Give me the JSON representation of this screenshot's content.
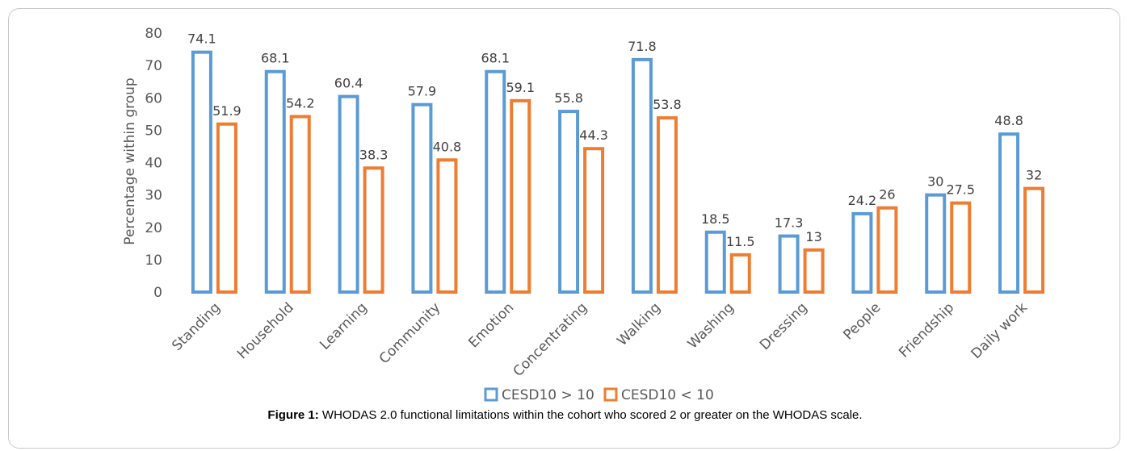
{
  "chart_data": {
    "type": "bar",
    "ylabel": "Percentage within group",
    "ylim": [
      0,
      80
    ],
    "yticks": [
      0,
      10,
      20,
      30,
      40,
      50,
      60,
      70,
      80
    ],
    "grid": false,
    "legend_position": "bottom",
    "categories": [
      "Standing",
      "Household",
      "Learning",
      "Community",
      "Emotion",
      "Concentrating",
      "Walking",
      "Washing",
      "Dressing",
      "People",
      "Friendship",
      "Daily work"
    ],
    "series": [
      {
        "name": "CESD10 > 10",
        "color": "#5b9bd5",
        "values": [
          74.1,
          68.1,
          60.4,
          57.9,
          68.1,
          55.8,
          71.8,
          18.5,
          17.3,
          24.2,
          30,
          48.8
        ],
        "labels": [
          "74.1",
          "68.1",
          "60.4",
          "57.9",
          "68.1",
          "55.8",
          "71.8",
          "18.5",
          "17.3",
          "24.2",
          "30",
          "48.8"
        ]
      },
      {
        "name": "CESD10 < 10",
        "color": "#ed7d31",
        "values": [
          51.9,
          54.2,
          38.3,
          40.8,
          59.1,
          44.3,
          53.8,
          11.5,
          13,
          26,
          27.5,
          32
        ],
        "labels": [
          "51.9",
          "54.2",
          "38.3",
          "40.8",
          "59.1",
          "44.3",
          "53.8",
          "11.5",
          "13",
          "26",
          "27.5",
          "32"
        ]
      }
    ]
  },
  "caption": {
    "label": "Figure 1:",
    "text": " WHODAS 2.0 functional limitations within the cohort who scored 2 or greater on the WHODAS scale."
  }
}
